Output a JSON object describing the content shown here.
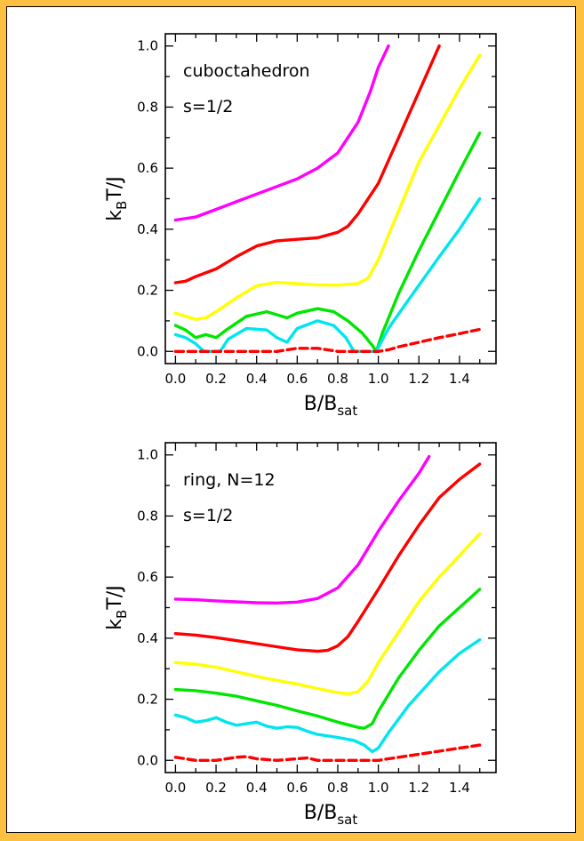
{
  "chart_data": [
    {
      "type": "line",
      "title": "",
      "annotations": [
        "cuboctahedron",
        "s=1/2"
      ],
      "xlabel": "B/B",
      "xlabel_sub": "sat",
      "ylabel": "k",
      "ylabel_sub": "B",
      "ylabel_tail": "T/J",
      "xlim": [
        -0.05,
        1.58
      ],
      "ylim": [
        -0.04,
        1.04
      ],
      "xticks": [
        0.0,
        0.2,
        0.4,
        0.6,
        0.8,
        1.0,
        1.2,
        1.4
      ],
      "xtick_labels": [
        "0.0",
        "0.2",
        "0.4",
        "0.6",
        "0.8",
        "1.0",
        "1.2",
        "1.4"
      ],
      "yticks": [
        0.0,
        0.2,
        0.4,
        0.6,
        0.8,
        1.0
      ],
      "ytick_labels": [
        "0.0",
        "0.2",
        "0.4",
        "0.6",
        "0.8",
        "1.0"
      ],
      "grid": false,
      "series": [
        {
          "color": "#ff00ff",
          "style": "solid",
          "points": [
            [
              0.0,
              0.43
            ],
            [
              0.1,
              0.44
            ],
            [
              0.2,
              0.465
            ],
            [
              0.3,
              0.49
            ],
            [
              0.4,
              0.515
            ],
            [
              0.5,
              0.54
            ],
            [
              0.6,
              0.565
            ],
            [
              0.7,
              0.6
            ],
            [
              0.8,
              0.65
            ],
            [
              0.9,
              0.75
            ],
            [
              0.96,
              0.85
            ],
            [
              1.0,
              0.93
            ],
            [
              1.05,
              1.0
            ]
          ]
        },
        {
          "color": "#ff0000",
          "style": "solid",
          "points": [
            [
              0.0,
              0.225
            ],
            [
              0.05,
              0.23
            ],
            [
              0.1,
              0.245
            ],
            [
              0.2,
              0.27
            ],
            [
              0.3,
              0.31
            ],
            [
              0.4,
              0.345
            ],
            [
              0.5,
              0.362
            ],
            [
              0.6,
              0.367
            ],
            [
              0.7,
              0.372
            ],
            [
              0.8,
              0.39
            ],
            [
              0.85,
              0.41
            ],
            [
              0.9,
              0.45
            ],
            [
              1.0,
              0.55
            ],
            [
              1.1,
              0.7
            ],
            [
              1.2,
              0.85
            ],
            [
              1.3,
              1.0
            ]
          ]
        },
        {
          "color": "#ffff00",
          "style": "solid",
          "points": [
            [
              0.0,
              0.125
            ],
            [
              0.05,
              0.115
            ],
            [
              0.1,
              0.105
            ],
            [
              0.15,
              0.11
            ],
            [
              0.2,
              0.13
            ],
            [
              0.3,
              0.175
            ],
            [
              0.4,
              0.215
            ],
            [
              0.5,
              0.226
            ],
            [
              0.6,
              0.222
            ],
            [
              0.7,
              0.218
            ],
            [
              0.8,
              0.217
            ],
            [
              0.9,
              0.222
            ],
            [
              0.95,
              0.24
            ],
            [
              1.0,
              0.3
            ],
            [
              1.1,
              0.46
            ],
            [
              1.2,
              0.62
            ],
            [
              1.3,
              0.74
            ],
            [
              1.4,
              0.86
            ],
            [
              1.5,
              0.97
            ]
          ]
        },
        {
          "color": "#00e600",
          "style": "solid",
          "points": [
            [
              0.0,
              0.085
            ],
            [
              0.05,
              0.07
            ],
            [
              0.1,
              0.045
            ],
            [
              0.15,
              0.055
            ],
            [
              0.2,
              0.045
            ],
            [
              0.25,
              0.07
            ],
            [
              0.35,
              0.115
            ],
            [
              0.45,
              0.13
            ],
            [
              0.55,
              0.11
            ],
            [
              0.6,
              0.125
            ],
            [
              0.7,
              0.14
            ],
            [
              0.78,
              0.13
            ],
            [
              0.85,
              0.1
            ],
            [
              0.92,
              0.06
            ],
            [
              0.97,
              0.02
            ],
            [
              0.99,
              0.0
            ],
            [
              1.02,
              0.06
            ],
            [
              1.1,
              0.19
            ],
            [
              1.2,
              0.33
            ],
            [
              1.3,
              0.46
            ],
            [
              1.4,
              0.59
            ],
            [
              1.5,
              0.715
            ]
          ]
        },
        {
          "color": "#00e5ee",
          "style": "solid",
          "points": [
            [
              0.0,
              0.055
            ],
            [
              0.05,
              0.045
            ],
            [
              0.1,
              0.025
            ],
            [
              0.14,
              0.0
            ],
            [
              0.22,
              0.0
            ],
            [
              0.26,
              0.04
            ],
            [
              0.35,
              0.075
            ],
            [
              0.45,
              0.07
            ],
            [
              0.5,
              0.045
            ],
            [
              0.55,
              0.03
            ],
            [
              0.6,
              0.075
            ],
            [
              0.7,
              0.1
            ],
            [
              0.78,
              0.085
            ],
            [
              0.84,
              0.045
            ],
            [
              0.88,
              0.0
            ],
            [
              0.99,
              0.0
            ],
            [
              1.05,
              0.075
            ],
            [
              1.15,
              0.17
            ],
            [
              1.3,
              0.31
            ],
            [
              1.4,
              0.4
            ],
            [
              1.5,
              0.5
            ]
          ]
        },
        {
          "color": "#ff0000",
          "style": "dashed",
          "points": [
            [
              0.0,
              0.0
            ],
            [
              0.05,
              0.0
            ],
            [
              0.1,
              0.0
            ],
            [
              0.15,
              0.0
            ],
            [
              0.22,
              0.0
            ],
            [
              0.3,
              0.0
            ],
            [
              0.4,
              0.0
            ],
            [
              0.5,
              0.0
            ],
            [
              0.55,
              0.005
            ],
            [
              0.6,
              0.01
            ],
            [
              0.7,
              0.01
            ],
            [
              0.75,
              0.005
            ],
            [
              0.8,
              0.0
            ],
            [
              0.85,
              0.0
            ],
            [
              0.9,
              0.0
            ],
            [
              0.95,
              0.0
            ],
            [
              1.0,
              0.0
            ],
            [
              1.05,
              0.005
            ],
            [
              1.1,
              0.015
            ],
            [
              1.2,
              0.03
            ],
            [
              1.3,
              0.045
            ],
            [
              1.4,
              0.058
            ],
            [
              1.5,
              0.072
            ]
          ]
        }
      ]
    },
    {
      "type": "line",
      "title": "",
      "annotations": [
        "ring, N=12",
        "s=1/2"
      ],
      "xlabel": "B/B",
      "xlabel_sub": "sat",
      "ylabel": "k",
      "ylabel_sub": "B",
      "ylabel_tail": "T/J",
      "xlim": [
        -0.05,
        1.58
      ],
      "ylim": [
        -0.04,
        1.04
      ],
      "xticks": [
        0.0,
        0.2,
        0.4,
        0.6,
        0.8,
        1.0,
        1.2,
        1.4
      ],
      "xtick_labels": [
        "0.0",
        "0.2",
        "0.4",
        "0.6",
        "0.8",
        "1.0",
        "1.2",
        "1.4"
      ],
      "yticks": [
        0.0,
        0.2,
        0.4,
        0.6,
        0.8,
        1.0
      ],
      "ytick_labels": [
        "0.0",
        "0.2",
        "0.4",
        "0.6",
        "0.8",
        "1.0"
      ],
      "grid": false,
      "series": [
        {
          "color": "#ff00ff",
          "style": "solid",
          "points": [
            [
              0.0,
              0.528
            ],
            [
              0.1,
              0.526
            ],
            [
              0.2,
              0.522
            ],
            [
              0.3,
              0.519
            ],
            [
              0.4,
              0.516
            ],
            [
              0.5,
              0.515
            ],
            [
              0.6,
              0.518
            ],
            [
              0.7,
              0.53
            ],
            [
              0.8,
              0.565
            ],
            [
              0.9,
              0.64
            ],
            [
              1.0,
              0.75
            ],
            [
              1.1,
              0.85
            ],
            [
              1.2,
              0.94
            ],
            [
              1.25,
              0.995
            ]
          ]
        },
        {
          "color": "#ff0000",
          "style": "solid",
          "points": [
            [
              0.0,
              0.415
            ],
            [
              0.1,
              0.41
            ],
            [
              0.2,
              0.402
            ],
            [
              0.3,
              0.392
            ],
            [
              0.4,
              0.382
            ],
            [
              0.5,
              0.372
            ],
            [
              0.6,
              0.362
            ],
            [
              0.7,
              0.357
            ],
            [
              0.75,
              0.36
            ],
            [
              0.8,
              0.375
            ],
            [
              0.85,
              0.405
            ],
            [
              0.9,
              0.455
            ],
            [
              1.0,
              0.56
            ],
            [
              1.1,
              0.67
            ],
            [
              1.2,
              0.77
            ],
            [
              1.3,
              0.86
            ],
            [
              1.4,
              0.92
            ],
            [
              1.5,
              0.97
            ]
          ]
        },
        {
          "color": "#ffff00",
          "style": "solid",
          "points": [
            [
              0.0,
              0.32
            ],
            [
              0.1,
              0.315
            ],
            [
              0.2,
              0.305
            ],
            [
              0.3,
              0.29
            ],
            [
              0.4,
              0.275
            ],
            [
              0.5,
              0.262
            ],
            [
              0.6,
              0.25
            ],
            [
              0.7,
              0.235
            ],
            [
              0.8,
              0.222
            ],
            [
              0.85,
              0.218
            ],
            [
              0.9,
              0.225
            ],
            [
              0.95,
              0.26
            ],
            [
              1.0,
              0.32
            ],
            [
              1.1,
              0.42
            ],
            [
              1.2,
              0.52
            ],
            [
              1.3,
              0.6
            ],
            [
              1.4,
              0.67
            ],
            [
              1.5,
              0.742
            ]
          ]
        },
        {
          "color": "#00e600",
          "style": "solid",
          "points": [
            [
              0.0,
              0.232
            ],
            [
              0.1,
              0.228
            ],
            [
              0.2,
              0.22
            ],
            [
              0.3,
              0.21
            ],
            [
              0.4,
              0.195
            ],
            [
              0.5,
              0.18
            ],
            [
              0.6,
              0.162
            ],
            [
              0.7,
              0.145
            ],
            [
              0.8,
              0.125
            ],
            [
              0.9,
              0.108
            ],
            [
              0.93,
              0.105
            ],
            [
              0.97,
              0.12
            ],
            [
              1.0,
              0.16
            ],
            [
              1.1,
              0.27
            ],
            [
              1.2,
              0.36
            ],
            [
              1.3,
              0.44
            ],
            [
              1.4,
              0.5
            ],
            [
              1.5,
              0.56
            ]
          ]
        },
        {
          "color": "#00e5ee",
          "style": "solid",
          "points": [
            [
              0.0,
              0.148
            ],
            [
              0.05,
              0.14
            ],
            [
              0.1,
              0.125
            ],
            [
              0.15,
              0.13
            ],
            [
              0.2,
              0.14
            ],
            [
              0.25,
              0.125
            ],
            [
              0.3,
              0.115
            ],
            [
              0.35,
              0.12
            ],
            [
              0.4,
              0.125
            ],
            [
              0.45,
              0.112
            ],
            [
              0.5,
              0.105
            ],
            [
              0.55,
              0.11
            ],
            [
              0.6,
              0.108
            ],
            [
              0.65,
              0.095
            ],
            [
              0.7,
              0.085
            ],
            [
              0.8,
              0.075
            ],
            [
              0.88,
              0.065
            ],
            [
              0.93,
              0.05
            ],
            [
              0.97,
              0.028
            ],
            [
              1.0,
              0.04
            ],
            [
              1.05,
              0.09
            ],
            [
              1.15,
              0.18
            ],
            [
              1.3,
              0.29
            ],
            [
              1.4,
              0.35
            ],
            [
              1.5,
              0.395
            ]
          ]
        },
        {
          "color": "#ff0000",
          "style": "dashed",
          "points": [
            [
              0.0,
              0.01
            ],
            [
              0.05,
              0.005
            ],
            [
              0.1,
              0.0
            ],
            [
              0.2,
              0.0
            ],
            [
              0.3,
              0.01
            ],
            [
              0.35,
              0.012
            ],
            [
              0.4,
              0.005
            ],
            [
              0.5,
              0.0
            ],
            [
              0.6,
              0.005
            ],
            [
              0.65,
              0.008
            ],
            [
              0.7,
              0.0
            ],
            [
              0.8,
              0.0
            ],
            [
              0.9,
              0.0
            ],
            [
              0.95,
              0.0
            ],
            [
              1.0,
              0.0
            ],
            [
              1.05,
              0.005
            ],
            [
              1.1,
              0.01
            ],
            [
              1.2,
              0.02
            ],
            [
              1.3,
              0.03
            ],
            [
              1.4,
              0.04
            ],
            [
              1.5,
              0.05
            ]
          ]
        }
      ]
    }
  ]
}
